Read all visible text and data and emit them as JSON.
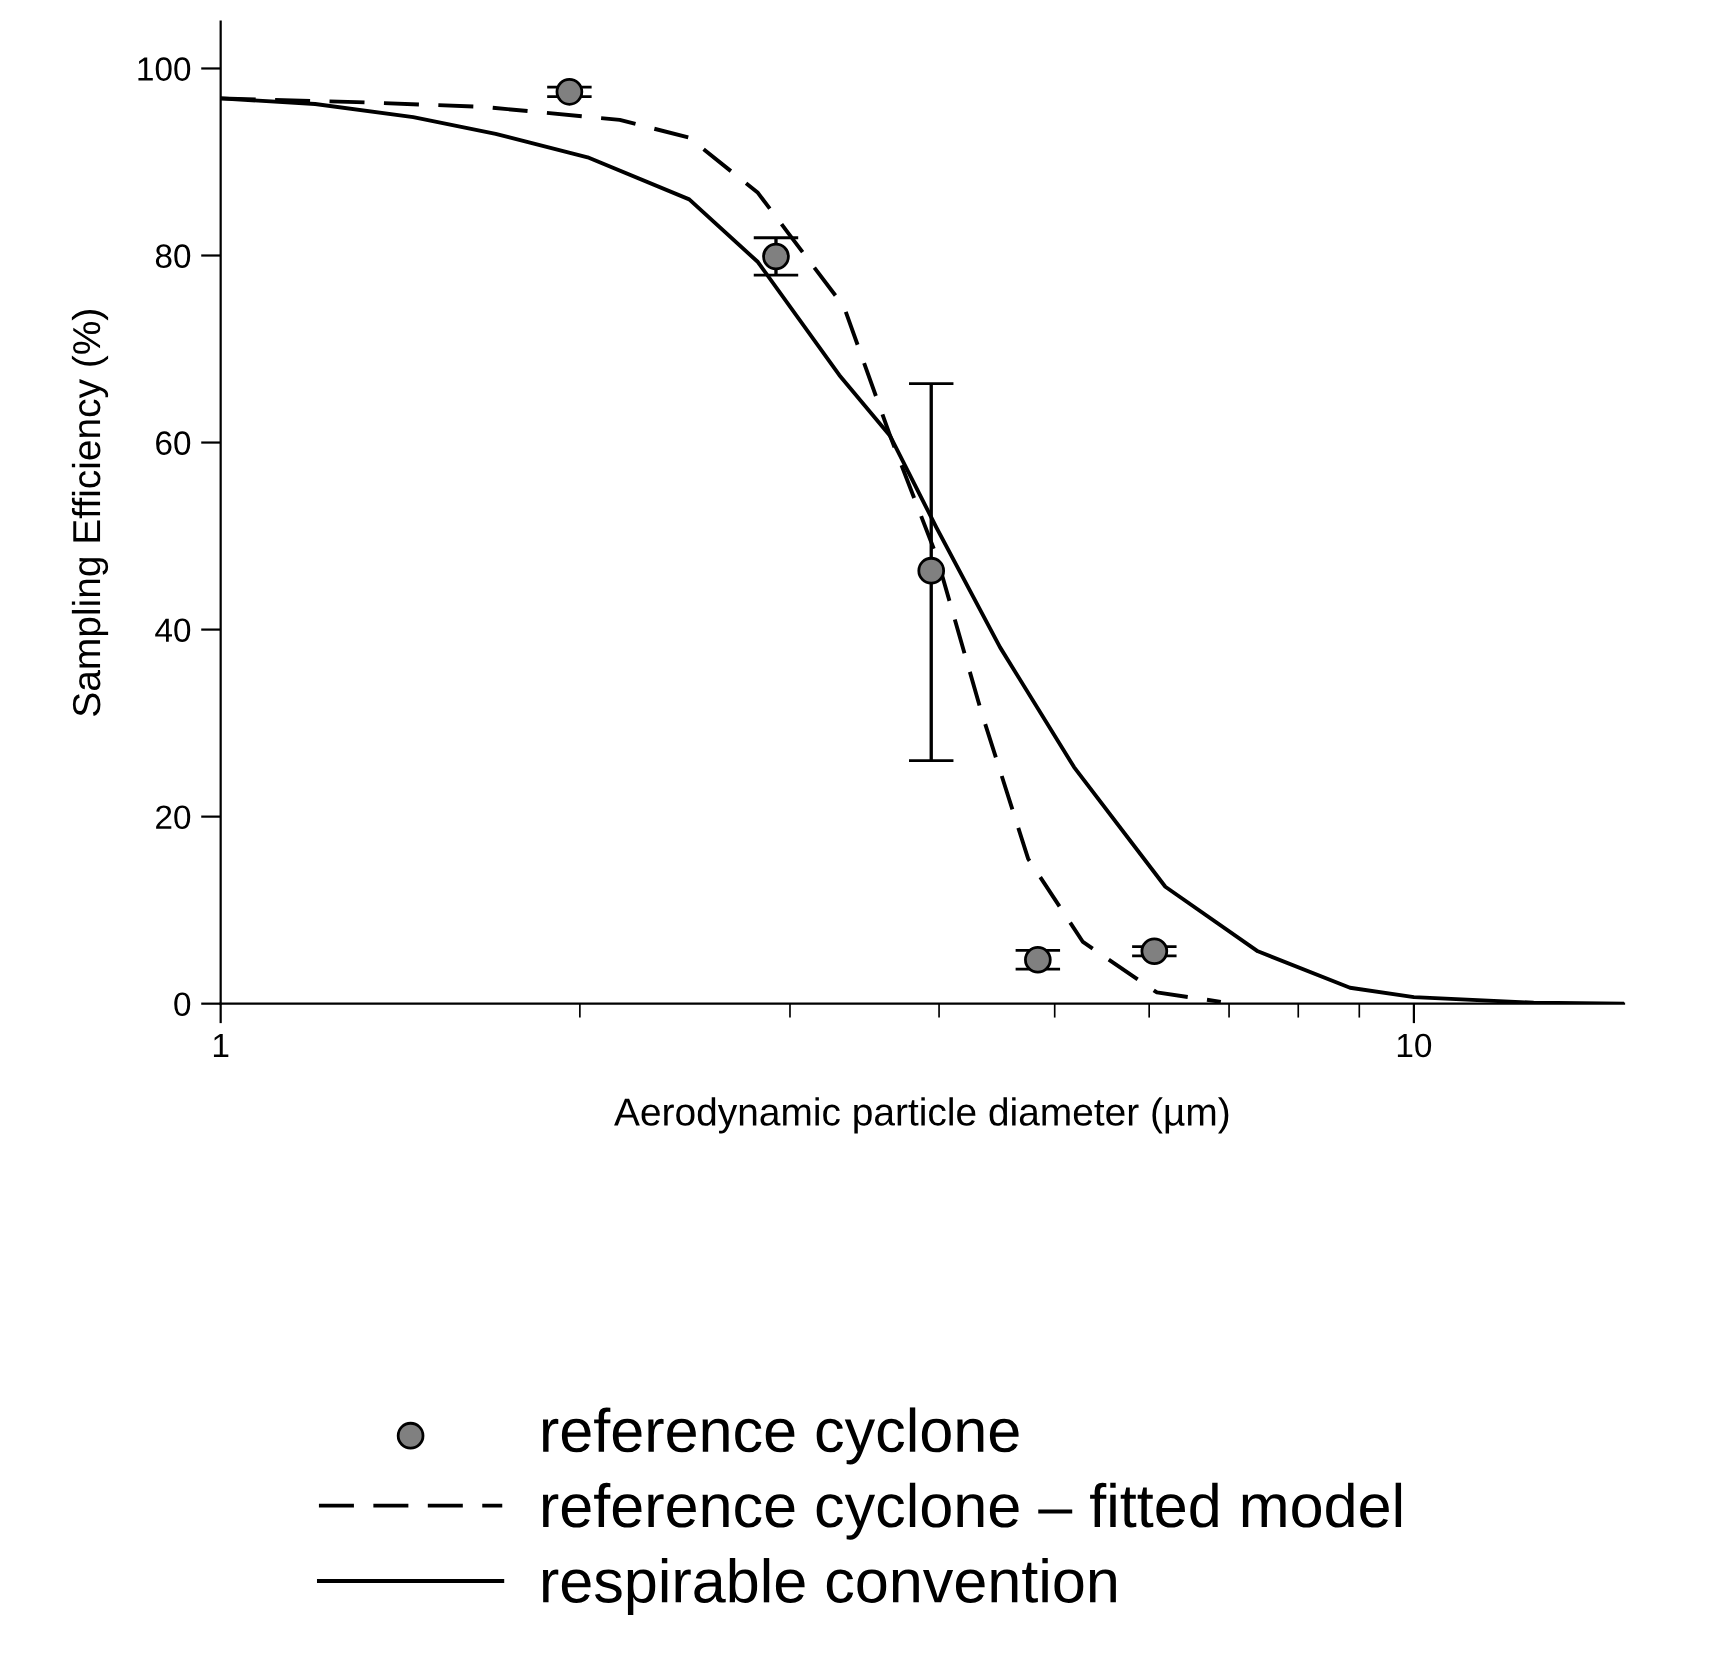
{
  "chart_data": {
    "type": "line",
    "xlabel": "Aerodynamic particle diameter (µm)",
    "ylabel": "Sampling Efficiency (%)",
    "log": "x",
    "xlim": [
      1,
      15
    ],
    "xticks": [
      1,
      10
    ],
    "ylim": [
      0,
      105
    ],
    "yticks": [
      0,
      20,
      40,
      60,
      80,
      100
    ],
    "grid": false,
    "legend": "bottom",
    "series": [
      {
        "name": "reference cyclone",
        "type": "scatter",
        "marker": "circle",
        "color": "#808080",
        "x": [
          1.96,
          2.92,
          3.94,
          4.84,
          6.06
        ],
        "values": [
          97.5,
          79.9,
          46.3,
          4.7,
          5.6
        ],
        "errors": [
          0.5,
          2,
          [
            26.0,
            66.3
          ],
          1,
          0.5
        ]
      },
      {
        "name": "reference cyclone – fitted model",
        "line_style": "dashed",
        "marker": "none",
        "color": "#000000",
        "x": [
          1,
          1.3,
          1.66,
          2.16,
          2.47,
          2.82,
          2.99,
          3.33,
          3.64,
          3.98,
          4.34,
          4.75,
          5.28,
          6.09,
          6.89
        ],
        "values": [
          96.8,
          96.4,
          95.9,
          94.5,
          92.6,
          86.7,
          82.4,
          74.5,
          60.7,
          47.9,
          31.2,
          15.5,
          6.6,
          1.2,
          0.2
        ]
      },
      {
        "name": "respirable convention",
        "line_style": "solid",
        "marker": "none",
        "color": "#000000",
        "x": [
          1,
          1.2,
          1.45,
          1.7,
          2.03,
          2.47,
          2.82,
          3.3,
          3.64,
          3.98,
          4.5,
          5.19,
          6.19,
          7.4,
          8.84,
          10,
          12.6,
          15
        ],
        "values": [
          96.8,
          96.2,
          94.8,
          93,
          90.5,
          86,
          79.3,
          67.2,
          60.7,
          50.9,
          38.1,
          25.3,
          12.5,
          5.6,
          1.7,
          0.7,
          0.1,
          0
        ]
      }
    ]
  }
}
